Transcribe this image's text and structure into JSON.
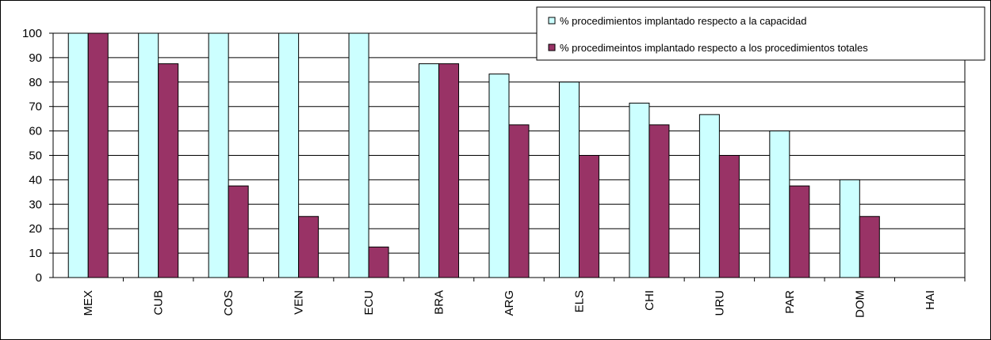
{
  "chart_data": {
    "type": "bar",
    "categories": [
      "MEX",
      "CUB",
      "COS",
      "VEN",
      "ECU",
      "BRA",
      "ARG",
      "ELS",
      "CHI",
      "URU",
      "PAR",
      "DOM",
      "HAI"
    ],
    "series": [
      {
        "name": "% procedimientos implantado respecto a la capacidad",
        "color": "#CCFFFF",
        "values": [
          100,
          100,
          100,
          100,
          100,
          87.5,
          83.3,
          80,
          71.4,
          66.7,
          60,
          40,
          0
        ]
      },
      {
        "name": "% procedimeintos implantado respecto a los procedimientos totales",
        "color": "#993366",
        "values": [
          100,
          87.5,
          37.5,
          25,
          12.5,
          87.5,
          62.5,
          50,
          62.5,
          50,
          37.5,
          25,
          0
        ]
      }
    ],
    "ylim": [
      0,
      100
    ],
    "yticks": [
      "0",
      "10",
      "20",
      "30",
      "40",
      "50",
      "60",
      "70",
      "80",
      "90",
      "100"
    ],
    "grid": true,
    "legend_position": "top-right"
  }
}
